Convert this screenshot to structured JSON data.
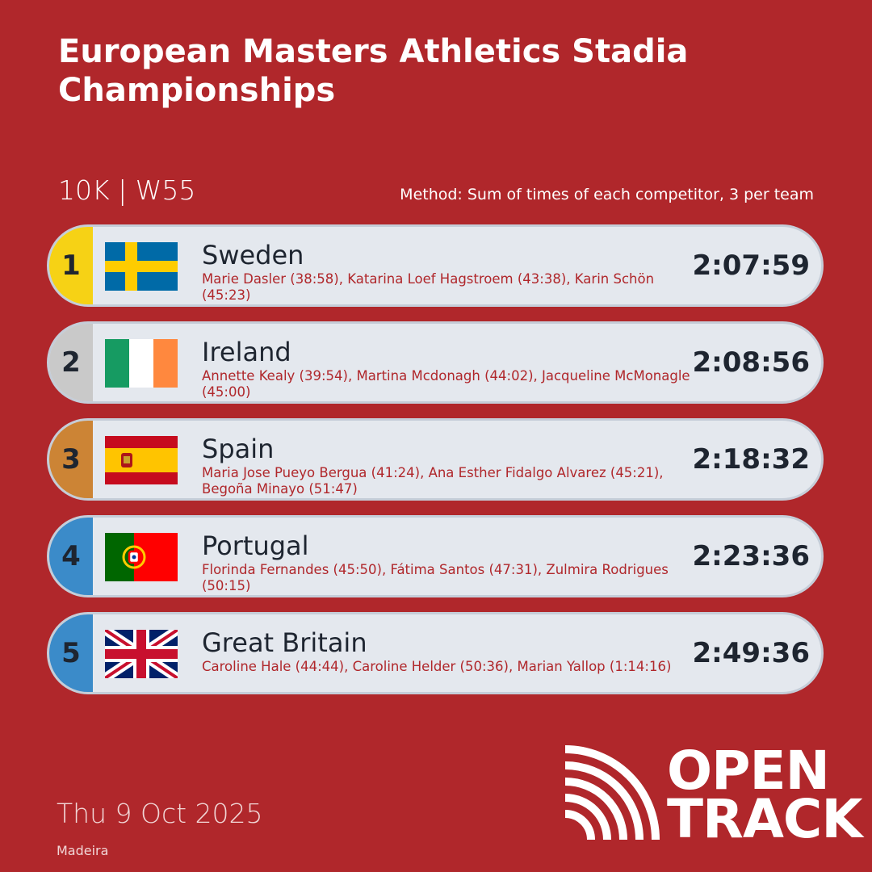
{
  "header": {
    "title": "European Masters Athletics Stadia Championships",
    "event": "10K | W55",
    "method": "Method: Sum of times of each competitor, 3 per team"
  },
  "results": [
    {
      "rank": 1,
      "country": "Sweden",
      "athletes": "Marie Dasler (38:58), Katarina Loef Hagstroem (43:38), Karin Schön (45:23)",
      "time": "2:07:59"
    },
    {
      "rank": 2,
      "country": "Ireland",
      "athletes": "Annette Kealy (39:54), Martina Mcdonagh (44:02), Jacqueline McMonagle (45:00)",
      "time": "2:08:56"
    },
    {
      "rank": 3,
      "country": "Spain",
      "athletes": "Maria Jose Pueyo Bergua (41:24), Ana Esther Fidalgo Alvarez (45:21), Begoña Minayo (51:47)",
      "time": "2:18:32"
    },
    {
      "rank": 4,
      "country": "Portugal",
      "athletes": "Florinda Fernandes (45:50), Fátima Santos (47:31), Zulmira Rodrigues (50:15)",
      "time": "2:23:36"
    },
    {
      "rank": 5,
      "country": "Great Britain",
      "athletes": "Caroline Hale (44:44), Caroline Helder (50:36), Marian Yallop (1:14:16)",
      "time": "2:49:36"
    }
  ],
  "footer": {
    "date": "Thu 9 Oct 2025",
    "location": "Madeira",
    "logo_line1": "OPEN",
    "logo_line2": "TRACK"
  }
}
